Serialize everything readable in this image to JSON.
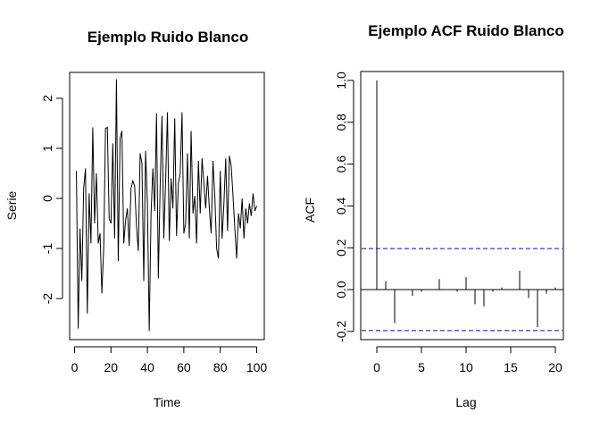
{
  "chart_data": [
    {
      "type": "line",
      "title": "Ejemplo Ruido Blanco",
      "xlabel": "Time",
      "ylabel": "Serie",
      "xlim": [
        0,
        100
      ],
      "ylim": [
        -2.8,
        2.5
      ],
      "xticks": [
        "0",
        "20",
        "40",
        "60",
        "80",
        "100"
      ],
      "yticks": [
        "-2",
        "-1",
        "0",
        "1",
        "2"
      ],
      "x": [
        1,
        2,
        3,
        4,
        5,
        6,
        7,
        8,
        9,
        10,
        11,
        12,
        13,
        14,
        15,
        16,
        17,
        18,
        19,
        20,
        21,
        22,
        23,
        24,
        25,
        26,
        27,
        28,
        29,
        30,
        31,
        32,
        33,
        34,
        35,
        36,
        37,
        38,
        39,
        40,
        41,
        42,
        43,
        44,
        45,
        46,
        47,
        48,
        49,
        50,
        51,
        52,
        53,
        54,
        55,
        56,
        57,
        58,
        59,
        60,
        61,
        62,
        63,
        64,
        65,
        66,
        67,
        68,
        69,
        70,
        71,
        72,
        73,
        74,
        75,
        76,
        77,
        78,
        79,
        80,
        81,
        82,
        83,
        84,
        85,
        86,
        87,
        88,
        89,
        90,
        91,
        92,
        93,
        94,
        95,
        96,
        97,
        98,
        99,
        100
      ],
      "series": [
        {
          "values": [
            0.55,
            -2.6,
            -0.6,
            -1.65,
            0.2,
            0.6,
            -2.3,
            0.1,
            -0.9,
            1.42,
            -0.5,
            0.5,
            -0.9,
            -0.7,
            -1.9,
            -1.0,
            1.4,
            1.42,
            -0.4,
            -0.5,
            1.1,
            -0.8,
            2.38,
            -1.25,
            1.2,
            1.35,
            -0.9,
            -0.45,
            -0.2,
            -0.95,
            0.2,
            0.35,
            0.25,
            -0.55,
            -1.05,
            0.9,
            0.7,
            -1.65,
            0.95,
            -0.1,
            -2.65,
            -0.3,
            0.6,
            -0.25,
            1.7,
            -1.6,
            0.25,
            1.65,
            -0.8,
            0.35,
            1.72,
            -0.85,
            0.4,
            -0.2,
            1.6,
            -0.75,
            0.3,
            0.5,
            1.72,
            -0.7,
            -0.5,
            0.9,
            -0.8,
            1.35,
            -0.3,
            0.05,
            -0.9,
            0.75,
            -0.3,
            0.8,
            0.3,
            -0.2,
            0.45,
            -0.2,
            -0.7,
            0.75,
            0.05,
            -1.0,
            -1.2,
            0.55,
            -0.8,
            -0.1,
            0.8,
            -0.65,
            0.85,
            0.65,
            0.05,
            -0.6,
            -1.2,
            -0.3,
            -0.6,
            0.0,
            -0.8,
            -0.2,
            -0.5,
            -0.1,
            -0.35,
            0.1,
            -0.25,
            -0.15
          ]
        }
      ]
    },
    {
      "type": "bar",
      "title": "Ejemplo ACF Ruido Blanco",
      "xlabel": "Lag",
      "ylabel": "ACF",
      "xlim": [
        0,
        20
      ],
      "ylim": [
        -0.24,
        1.04
      ],
      "xticks": [
        "0",
        "5",
        "10",
        "15",
        "20"
      ],
      "yticks": [
        "-0.2",
        "0.0",
        "0.2",
        "0.4",
        "0.6",
        "0.8",
        "1.0"
      ],
      "lags": [
        0,
        1,
        2,
        3,
        4,
        5,
        6,
        7,
        8,
        9,
        10,
        11,
        12,
        13,
        14,
        15,
        16,
        17,
        18,
        19,
        20
      ],
      "values": [
        1.0,
        0.04,
        -0.16,
        0.0,
        -0.03,
        -0.01,
        0.0,
        0.05,
        0.0,
        -0.01,
        0.06,
        -0.07,
        -0.08,
        -0.01,
        0.01,
        0.0,
        0.09,
        -0.04,
        -0.18,
        -0.02,
        0.01
      ],
      "confidence_band": [
        -0.196,
        0.196
      ],
      "band_color": "#0000ff"
    }
  ]
}
